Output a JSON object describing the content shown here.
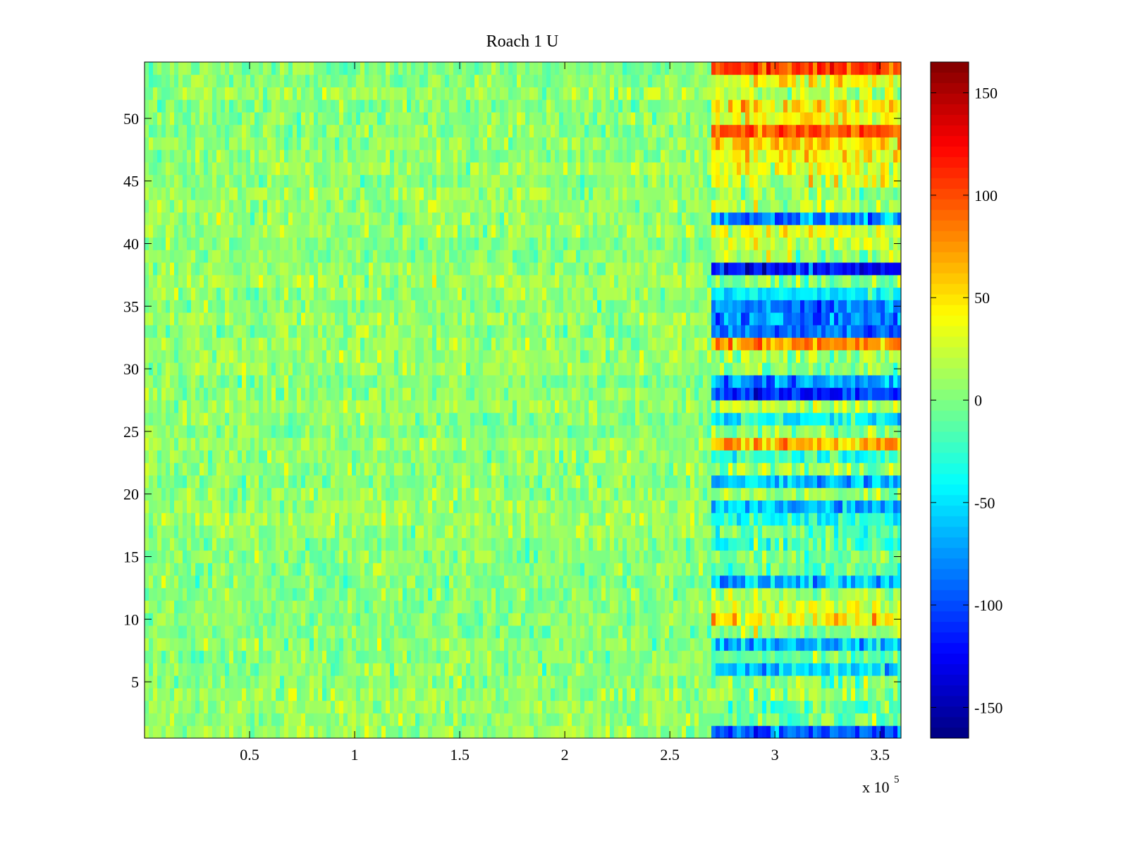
{
  "chart_data": {
    "type": "heatmap",
    "title": "Roach 1 U",
    "xlabel": "",
    "ylabel": "",
    "x_multiplier_label": "x 10",
    "x_multiplier_exponent": "5",
    "xlim": [
      0,
      360000
    ],
    "ylim": [
      0.5,
      54.5
    ],
    "x_ticks": [
      0.5,
      1,
      1.5,
      2,
      2.5,
      3,
      3.5
    ],
    "x_tick_labels": [
      "0.5",
      "1",
      "1.5",
      "2",
      "2.5",
      "3",
      "3.5"
    ],
    "y_ticks": [
      5,
      10,
      15,
      20,
      25,
      30,
      35,
      40,
      45,
      50
    ],
    "y_tick_labels": [
      "5",
      "10",
      "15",
      "20",
      "25",
      "30",
      "35",
      "40",
      "45",
      "50"
    ],
    "rows": 54,
    "change_point_x": 268500,
    "baseline": {
      "mean": 5,
      "noise_sd": 12
    },
    "segment_after_change": {
      "row_means": [
        -95,
        -5,
        -10,
        10,
        2,
        -55,
        -12,
        -60,
        5,
        45,
        25,
        10,
        -65,
        -10,
        2,
        -12,
        -10,
        -35,
        -60,
        8,
        -60,
        10,
        -20,
        65,
        5,
        -40,
        15,
        -110,
        -75,
        5,
        10,
        75,
        -85,
        -80,
        -85,
        -50,
        5,
        -120,
        10,
        20,
        30,
        -80,
        15,
        10,
        30,
        30,
        40,
        55,
        95,
        40,
        45,
        20,
        40,
        105
      ],
      "noise_sd": 18
    },
    "colorbar": {
      "colormap": "jet",
      "clim": [
        -165,
        165
      ],
      "ticks": [
        -150,
        -100,
        -50,
        0,
        50,
        100,
        150
      ],
      "tick_labels": [
        "-150",
        "-100",
        "-50",
        "0",
        "50",
        "100",
        "150"
      ]
    },
    "grid": false,
    "legend": "none"
  }
}
